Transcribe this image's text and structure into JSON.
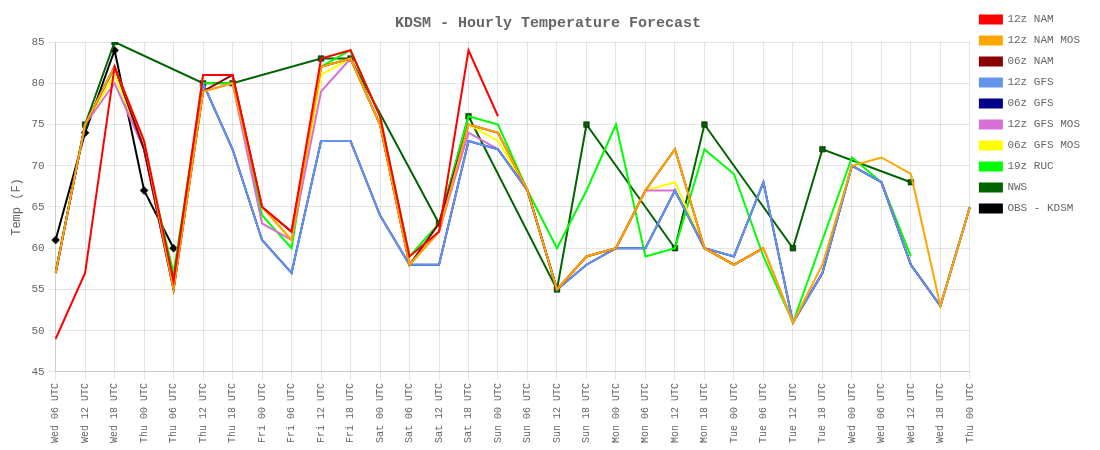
{
  "chart_data": {
    "type": "line",
    "title": "KDSM - Hourly Temperature Forecast",
    "y_label": "Temp (F)",
    "ylim": [
      45,
      85
    ],
    "yticks": [
      45,
      50,
      55,
      60,
      65,
      70,
      75,
      80,
      85
    ],
    "grid": true,
    "legend": "upper right",
    "categories": [
      "Wed 06 UTC",
      "Wed 12 UTC",
      "Wed 18 UTC",
      "Thu 00 UTC",
      "Thu 06 UTC",
      "Thu 12 UTC",
      "Thu 18 UTC",
      "Fri 00 UTC",
      "Fri 06 UTC",
      "Fri 12 UTC",
      "Fri 18 UTC",
      "Sat 00 UTC",
      "Sat 06 UTC",
      "Sat 12 UTC",
      "Sat 18 UTC",
      "Sun 00 UTC",
      "Sun 06 UTC",
      "Sun 12 UTC",
      "Sun 18 UTC",
      "Mon 00 UTC",
      "Mon 06 UTC",
      "Mon 12 UTC",
      "Mon 18 UTC",
      "Tue 00 UTC",
      "Tue 06 UTC",
      "Tue 12 UTC",
      "Tue 18 UTC",
      "Wed 00 UTC",
      "Wed 06 UTC",
      "Wed 12 UTC",
      "Wed 18 UTC",
      "Thu 00 UTC"
    ],
    "series": [
      {
        "name": "12z NAM",
        "color": "#ff0000",
        "values": [
          49,
          57,
          82,
          73,
          56,
          81,
          81,
          65,
          62,
          83,
          84,
          76,
          59,
          62,
          84,
          76,
          null,
          null,
          null,
          null,
          null,
          null,
          null,
          null,
          null,
          null,
          null,
          null,
          null,
          null,
          null,
          null
        ]
      },
      {
        "name": "12z NAM MOS",
        "color": "#ffa500",
        "values": [
          57,
          75,
          82,
          73,
          55,
          79,
          80,
          65,
          61,
          82,
          83,
          75,
          58,
          62,
          75,
          74,
          67,
          55,
          59,
          60,
          67,
          72,
          60,
          58,
          60,
          51,
          58,
          70,
          71,
          69,
          53,
          65
        ]
      },
      {
        "name": "06z NAM",
        "color": "#8b0000",
        "values": [
          57,
          75,
          82,
          72,
          55,
          79,
          81,
          65,
          62,
          82,
          83,
          75,
          58,
          63,
          75,
          74,
          67,
          55,
          59,
          60,
          67,
          72,
          60,
          58,
          60,
          null,
          null,
          null,
          null,
          null,
          null,
          null
        ]
      },
      {
        "name": "12z GFS",
        "color": "#6495ed",
        "values": [
          57,
          75,
          82,
          72,
          55,
          80,
          72,
          61,
          57,
          73,
          73,
          64,
          58,
          58,
          73,
          72,
          67,
          55,
          58,
          60,
          60,
          67,
          60,
          59,
          68,
          51,
          57,
          70,
          68,
          58,
          53,
          65
        ]
      },
      {
        "name": "06z GFS",
        "color": "#00008b",
        "values": [
          57,
          75,
          82,
          72,
          56,
          80,
          72,
          61,
          57,
          73,
          73,
          64,
          58,
          58,
          73,
          72,
          67,
          55,
          58,
          60,
          60,
          67,
          60,
          59,
          68,
          51,
          57,
          70,
          68,
          58,
          53,
          65
        ]
      },
      {
        "name": "12z GFS MOS",
        "color": "#da70d6",
        "values": [
          57,
          75,
          80,
          72,
          55,
          79,
          80,
          63,
          61,
          79,
          83,
          75,
          58,
          62,
          74,
          72,
          67,
          55,
          59,
          60,
          67,
          67,
          60,
          58,
          60,
          51,
          57,
          70,
          68,
          58,
          53,
          65
        ]
      },
      {
        "name": "06z GFS MOS",
        "color": "#ffff00",
        "values": [
          57,
          75,
          81,
          72,
          55,
          81,
          81,
          65,
          61,
          81,
          83,
          75,
          58,
          62,
          75,
          73,
          67,
          55,
          59,
          60,
          67,
          68,
          60,
          58,
          60,
          51,
          57,
          70,
          68,
          58,
          53,
          65
        ]
      },
      {
        "name": "19z RUC",
        "color": "#00ff00",
        "values": [
          57,
          75,
          82,
          72,
          57,
          80,
          80,
          64,
          60,
          82,
          84,
          76,
          59,
          63,
          76,
          75,
          67,
          60,
          67,
          75,
          59,
          60,
          72,
          69,
          59,
          51,
          61,
          71,
          68,
          59,
          null,
          null
        ]
      },
      {
        "name": "NWS",
        "color": "#006400",
        "marker": "square",
        "values": [
          null,
          75,
          85,
          null,
          null,
          80,
          80,
          null,
          null,
          83,
          83,
          null,
          null,
          63,
          76,
          null,
          null,
          55,
          75,
          null,
          null,
          60,
          75,
          null,
          null,
          60,
          72,
          null,
          null,
          68,
          null,
          null
        ]
      },
      {
        "name": "OBS - KDSM",
        "color": "#000000",
        "marker": "diamond",
        "values": [
          61,
          74,
          84,
          67,
          60,
          null,
          null,
          null,
          null,
          null,
          null,
          null,
          null,
          null,
          null,
          null,
          null,
          null,
          null,
          null,
          null,
          null,
          null,
          null,
          null,
          null,
          null,
          null,
          null,
          null,
          null,
          null
        ]
      }
    ]
  }
}
